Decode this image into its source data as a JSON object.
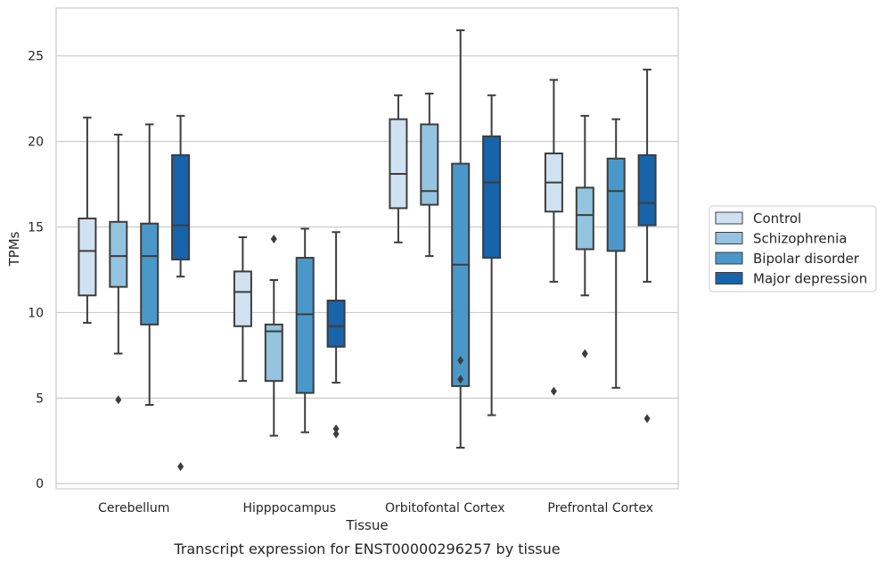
{
  "chart_data": {
    "type": "box",
    "caption": "Transcript expression for ENST00000296257 by tissue",
    "xlabel": "Tissue",
    "ylabel": "TPMs",
    "ylim": [
      -0.3,
      27.8
    ],
    "yticks": [
      0,
      5,
      10,
      15,
      20,
      25
    ],
    "grid": true,
    "legend_position": "right",
    "categories": [
      "Cerebellum",
      "Hipppocampus",
      "Orbitofontal Cortex",
      "Prefrontal Cortex"
    ],
    "series": [
      {
        "name": "Control",
        "color": "#d0e1f2",
        "boxes": [
          {
            "whisker_low": 9.4,
            "q1": 11.0,
            "median": 13.6,
            "q3": 15.5,
            "whisker_high": 21.4,
            "outliers": []
          },
          {
            "whisker_low": 6.0,
            "q1": 9.2,
            "median": 11.2,
            "q3": 12.4,
            "whisker_high": 14.4,
            "outliers": []
          },
          {
            "whisker_low": 14.1,
            "q1": 16.1,
            "median": 18.1,
            "q3": 21.3,
            "whisker_high": 22.7,
            "outliers": []
          },
          {
            "whisker_low": 11.8,
            "q1": 15.9,
            "median": 17.6,
            "q3": 19.3,
            "whisker_high": 23.6,
            "outliers": [
              5.4
            ]
          }
        ]
      },
      {
        "name": "Schizophrenia",
        "color": "#94c4df",
        "boxes": [
          {
            "whisker_low": 7.6,
            "q1": 11.5,
            "median": 13.3,
            "q3": 15.3,
            "whisker_high": 20.4,
            "outliers": [
              4.9
            ]
          },
          {
            "whisker_low": 2.8,
            "q1": 6.0,
            "median": 8.9,
            "q3": 9.3,
            "whisker_high": 11.9,
            "outliers": [
              14.3
            ]
          },
          {
            "whisker_low": 13.3,
            "q1": 16.3,
            "median": 17.1,
            "q3": 21.0,
            "whisker_high": 22.8,
            "outliers": []
          },
          {
            "whisker_low": 11.0,
            "q1": 13.7,
            "median": 15.7,
            "q3": 17.3,
            "whisker_high": 21.5,
            "outliers": [
              7.6
            ]
          }
        ]
      },
      {
        "name": "Bipolar disorder",
        "color": "#4a98c9",
        "boxes": [
          {
            "whisker_low": 4.6,
            "q1": 9.3,
            "median": 13.3,
            "q3": 15.2,
            "whisker_high": 21.0,
            "outliers": []
          },
          {
            "whisker_low": 3.0,
            "q1": 5.3,
            "median": 9.9,
            "q3": 13.2,
            "whisker_high": 14.9,
            "outliers": []
          },
          {
            "whisker_low": 2.1,
            "q1": 5.7,
            "median": 12.8,
            "q3": 18.7,
            "whisker_high": 26.5,
            "outliers": [
              6.1,
              7.2
            ]
          },
          {
            "whisker_low": 5.6,
            "q1": 13.6,
            "median": 17.1,
            "q3": 19.0,
            "whisker_high": 21.3,
            "outliers": []
          }
        ]
      },
      {
        "name": "Major depression",
        "color": "#1764ab",
        "boxes": [
          {
            "whisker_low": 12.1,
            "q1": 13.1,
            "median": 15.1,
            "q3": 19.2,
            "whisker_high": 21.5,
            "outliers": [
              1.0
            ]
          },
          {
            "whisker_low": 5.9,
            "q1": 8.0,
            "median": 9.2,
            "q3": 10.7,
            "whisker_high": 14.7,
            "outliers": [
              2.9,
              3.2
            ]
          },
          {
            "whisker_low": 4.0,
            "q1": 13.2,
            "median": 17.6,
            "q3": 20.3,
            "whisker_high": 22.7,
            "outliers": []
          },
          {
            "whisker_low": 11.8,
            "q1": 15.1,
            "median": 16.4,
            "q3": 19.2,
            "whisker_high": 24.2,
            "outliers": [
              3.8
            ]
          }
        ]
      }
    ]
  }
}
